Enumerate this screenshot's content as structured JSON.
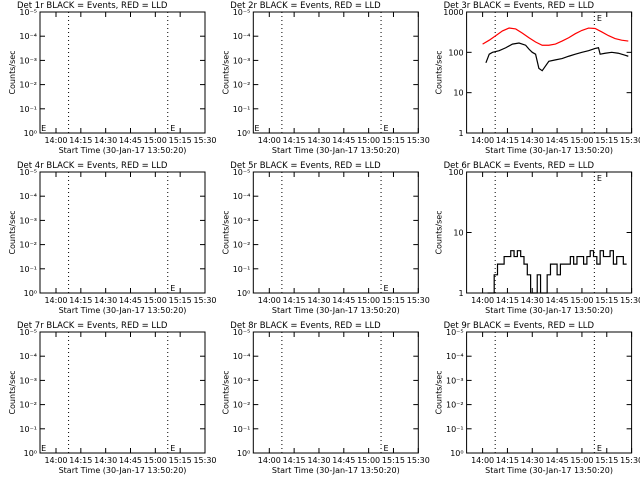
{
  "chart_data": [
    {
      "type": "line",
      "title": "Det 1r BLACK = Events, RED = LLD",
      "xlabel": "Start Time (30-Jan-17 13:50:20)",
      "ylabel": "Counts/sec",
      "log_y": true,
      "xlim": [
        830.333,
        930
      ],
      "xticks": [
        {
          "value": 840,
          "label": "14:00"
        },
        {
          "value": 855,
          "label": "14:15"
        },
        {
          "value": 870,
          "label": "14:30"
        },
        {
          "value": 885,
          "label": "14:45"
        },
        {
          "value": 900,
          "label": "15:00"
        },
        {
          "value": 915,
          "label": "15:15"
        },
        {
          "value": 930,
          "label": "15:30"
        }
      ],
      "ylim": [
        1,
        1e-05
      ],
      "yticks": [
        {
          "value": 1e-05,
          "label": "10⁻⁵"
        },
        {
          "value": 0.0001,
          "label": "10⁻⁴"
        },
        {
          "value": 0.001,
          "label": "10⁻³"
        },
        {
          "value": 0.01,
          "label": "10⁻²"
        },
        {
          "value": 0.1,
          "label": "10⁻¹"
        },
        {
          "value": 1,
          "label": "10⁰"
        }
      ],
      "vlines": [
        847.6,
        907.5
      ],
      "annotations": [
        {
          "text": "E",
          "x": 831,
          "y": 1
        },
        {
          "text": "E",
          "x": 909,
          "y": 1
        }
      ],
      "series": []
    },
    {
      "type": "line",
      "title": "Det 2r BLACK = Events, RED = LLD",
      "xlabel": "Start Time (30-Jan-17 13:50:20)",
      "ylabel": "Counts/sec",
      "log_y": true,
      "xlim": [
        830.333,
        930
      ],
      "xticks": [
        {
          "value": 840,
          "label": "14:00"
        },
        {
          "value": 855,
          "label": "14:15"
        },
        {
          "value": 870,
          "label": "14:30"
        },
        {
          "value": 885,
          "label": "14:45"
        },
        {
          "value": 900,
          "label": "15:00"
        },
        {
          "value": 915,
          "label": "15:15"
        },
        {
          "value": 930,
          "label": "15:30"
        }
      ],
      "ylim": [
        1,
        1e-05
      ],
      "yticks": [
        {
          "value": 1e-05,
          "label": "10⁻⁵"
        },
        {
          "value": 0.0001,
          "label": "10⁻⁴"
        },
        {
          "value": 0.001,
          "label": "10⁻³"
        },
        {
          "value": 0.01,
          "label": "10⁻²"
        },
        {
          "value": 0.1,
          "label": "10⁻¹"
        },
        {
          "value": 1,
          "label": "10⁰"
        }
      ],
      "vlines": [
        847.6,
        907.5
      ],
      "annotations": [
        {
          "text": "E",
          "x": 831,
          "y": 1
        },
        {
          "text": "E",
          "x": 909,
          "y": 1
        }
      ],
      "series": []
    },
    {
      "type": "line",
      "title": "Det 3r BLACK = Events, RED = LLD",
      "xlabel": "Start Time (30-Jan-17 13:50:20)",
      "ylabel": "Counts/sec",
      "log_y": true,
      "xlim": [
        830.333,
        930
      ],
      "xticks": [
        {
          "value": 840,
          "label": "14:00"
        },
        {
          "value": 855,
          "label": "14:15"
        },
        {
          "value": 870,
          "label": "14:30"
        },
        {
          "value": 885,
          "label": "14:45"
        },
        {
          "value": 900,
          "label": "15:00"
        },
        {
          "value": 915,
          "label": "15:15"
        },
        {
          "value": 930,
          "label": "15:30"
        }
      ],
      "ylim": [
        1,
        1000
      ],
      "yticks": [
        1,
        10,
        100,
        1000
      ],
      "vlines": [
        847.6,
        907.5
      ],
      "annotations": [
        {
          "text": "E",
          "x": 909,
          "y": 1000
        }
      ],
      "series": [
        {
          "color": "#ff0000",
          "x": [
            840,
            844,
            848,
            852,
            856,
            860,
            864,
            868,
            872,
            876,
            880,
            884,
            888,
            892,
            896,
            900,
            904,
            908,
            912,
            916,
            920,
            924,
            928
          ],
          "values": [
            160,
            200,
            260,
            340,
            400,
            380,
            300,
            230,
            180,
            150,
            150,
            160,
            190,
            230,
            290,
            350,
            400,
            390,
            320,
            260,
            220,
            200,
            190
          ]
        },
        {
          "color": "#000000",
          "x": [
            842,
            844,
            846,
            850,
            854,
            858,
            862,
            866,
            868,
            870,
            872,
            874,
            876,
            880,
            884,
            888,
            892,
            896,
            900,
            904,
            908,
            910,
            911,
            914,
            918,
            922,
            926,
            928
          ],
          "values": [
            55,
            90,
            100,
            110,
            130,
            160,
            170,
            150,
            120,
            100,
            90,
            40,
            35,
            60,
            65,
            70,
            80,
            90,
            100,
            110,
            125,
            130,
            90,
            95,
            100,
            95,
            85,
            80
          ]
        }
      ]
    },
    {
      "type": "line",
      "title": "Det 4r BLACK = Events, RED = LLD",
      "xlabel": "Start Time (30-Jan-17 13:50:20)",
      "ylabel": "Counts/sec",
      "log_y": true,
      "xlim": [
        830.333,
        930
      ],
      "xticks": [
        {
          "value": 840,
          "label": "14:00"
        },
        {
          "value": 855,
          "label": "14:15"
        },
        {
          "value": 870,
          "label": "14:30"
        },
        {
          "value": 885,
          "label": "14:45"
        },
        {
          "value": 900,
          "label": "15:00"
        },
        {
          "value": 915,
          "label": "15:15"
        },
        {
          "value": 930,
          "label": "15:30"
        }
      ],
      "ylim": [
        1,
        1e-05
      ],
      "yticks": [
        {
          "value": 1e-05,
          "label": "10⁻⁵"
        },
        {
          "value": 0.0001,
          "label": "10⁻⁴"
        },
        {
          "value": 0.001,
          "label": "10⁻³"
        },
        {
          "value": 0.01,
          "label": "10⁻²"
        },
        {
          "value": 0.1,
          "label": "10⁻¹"
        },
        {
          "value": 1,
          "label": "10⁰"
        }
      ],
      "vlines": [
        847.6,
        907.5
      ],
      "annotations": [
        {
          "text": "E",
          "x": 909,
          "y": 1
        }
      ],
      "series": []
    },
    {
      "type": "line",
      "title": "Det 5r BLACK = Events, RED = LLD",
      "xlabel": "Start Time (30-Jan-17 13:50:20)",
      "ylabel": "Counts/sec",
      "log_y": true,
      "xlim": [
        830.333,
        930
      ],
      "xticks": [
        {
          "value": 840,
          "label": "14:00"
        },
        {
          "value": 855,
          "label": "14:15"
        },
        {
          "value": 870,
          "label": "14:30"
        },
        {
          "value": 885,
          "label": "14:45"
        },
        {
          "value": 900,
          "label": "15:00"
        },
        {
          "value": 915,
          "label": "15:15"
        },
        {
          "value": 930,
          "label": "15:30"
        }
      ],
      "ylim": [
        1,
        1e-05
      ],
      "yticks": [
        {
          "value": 1e-05,
          "label": "10⁻⁵"
        },
        {
          "value": 0.0001,
          "label": "10⁻⁴"
        },
        {
          "value": 0.001,
          "label": "10⁻³"
        },
        {
          "value": 0.01,
          "label": "10⁻²"
        },
        {
          "value": 0.1,
          "label": "10⁻¹"
        },
        {
          "value": 1,
          "label": "10⁰"
        }
      ],
      "vlines": [
        847.6,
        907.5
      ],
      "annotations": [
        {
          "text": "E",
          "x": 909,
          "y": 1
        }
      ],
      "series": []
    },
    {
      "type": "line",
      "title": "Det 6r BLACK = Events, RED = LLD",
      "xlabel": "Start Time (30-Jan-17 13:50:20)",
      "ylabel": "Counts/sec",
      "log_y": true,
      "step": true,
      "xlim": [
        830.333,
        930
      ],
      "xticks": [
        {
          "value": 840,
          "label": "14:00"
        },
        {
          "value": 855,
          "label": "14:15"
        },
        {
          "value": 870,
          "label": "14:30"
        },
        {
          "value": 885,
          "label": "14:45"
        },
        {
          "value": 900,
          "label": "15:00"
        },
        {
          "value": 915,
          "label": "15:15"
        },
        {
          "value": 930,
          "label": "15:30"
        }
      ],
      "ylim": [
        1,
        100
      ],
      "yticks": [
        1,
        10,
        100
      ],
      "vlines": [
        847.6,
        907.5
      ],
      "annotations": [
        {
          "text": "E",
          "x": 909,
          "y": 100
        }
      ],
      "series": [
        {
          "color": "#000000",
          "x": [
            843,
            845,
            847,
            849,
            851,
            853,
            855,
            857,
            859,
            861,
            863,
            865,
            867,
            869,
            871,
            873,
            875,
            877,
            879,
            881,
            883,
            885,
            887,
            889,
            891,
            893,
            895,
            897,
            899,
            901,
            903,
            905,
            907,
            909,
            911,
            913,
            915,
            917,
            919,
            921,
            923,
            925,
            927
          ],
          "values": [
            1,
            1,
            2,
            3,
            3,
            4,
            4,
            5,
            4,
            5,
            4,
            3,
            2,
            1,
            1,
            2,
            1,
            1,
            2,
            3,
            3,
            2,
            3,
            3,
            3,
            4,
            3,
            4,
            4,
            3,
            4,
            5,
            4,
            3,
            5,
            4,
            4,
            5,
            3,
            4,
            4,
            3,
            3
          ]
        }
      ]
    },
    {
      "type": "line",
      "title": "Det 7r BLACK = Events, RED = LLD",
      "xlabel": "Start Time (30-Jan-17 13:50:20)",
      "ylabel": "Counts/sec",
      "log_y": true,
      "xlim": [
        830.333,
        930
      ],
      "xticks": [
        {
          "value": 840,
          "label": "14:00"
        },
        {
          "value": 855,
          "label": "14:15"
        },
        {
          "value": 870,
          "label": "14:30"
        },
        {
          "value": 885,
          "label": "14:45"
        },
        {
          "value": 900,
          "label": "15:00"
        },
        {
          "value": 915,
          "label": "15:15"
        },
        {
          "value": 930,
          "label": "15:30"
        }
      ],
      "ylim": [
        1,
        1e-05
      ],
      "yticks": [
        {
          "value": 1e-05,
          "label": "10⁻⁵"
        },
        {
          "value": 0.0001,
          "label": "10⁻⁴"
        },
        {
          "value": 0.001,
          "label": "10⁻³"
        },
        {
          "value": 0.01,
          "label": "10⁻²"
        },
        {
          "value": 0.1,
          "label": "10⁻¹"
        },
        {
          "value": 1,
          "label": "10⁰"
        }
      ],
      "vlines": [
        847.6,
        907.5
      ],
      "annotations": [
        {
          "text": "E",
          "x": 831,
          "y": 1
        },
        {
          "text": "E",
          "x": 909,
          "y": 1
        }
      ],
      "series": []
    },
    {
      "type": "line",
      "title": "Det 8r BLACK = Events, RED = LLD",
      "xlabel": "Start Time (30-Jan-17 13:50:20)",
      "ylabel": "Counts/sec",
      "log_y": true,
      "xlim": [
        830.333,
        930
      ],
      "xticks": [
        {
          "value": 840,
          "label": "14:00"
        },
        {
          "value": 855,
          "label": "14:15"
        },
        {
          "value": 870,
          "label": "14:30"
        },
        {
          "value": 885,
          "label": "14:45"
        },
        {
          "value": 900,
          "label": "15:00"
        },
        {
          "value": 915,
          "label": "15:15"
        },
        {
          "value": 930,
          "label": "15:30"
        }
      ],
      "ylim": [
        1,
        1e-05
      ],
      "yticks": [
        {
          "value": 1e-05,
          "label": "10⁻⁵"
        },
        {
          "value": 0.0001,
          "label": "10⁻⁴"
        },
        {
          "value": 0.001,
          "label": "10⁻³"
        },
        {
          "value": 0.01,
          "label": "10⁻²"
        },
        {
          "value": 0.1,
          "label": "10⁻¹"
        },
        {
          "value": 1,
          "label": "10⁰"
        }
      ],
      "vlines": [
        847.6,
        907.5
      ],
      "annotations": [
        {
          "text": "E",
          "x": 909,
          "y": 1
        }
      ],
      "series": []
    },
    {
      "type": "line",
      "title": "Det 9r BLACK = Events, RED = LLD",
      "xlabel": "Start Time (30-Jan-17 13:50:20)",
      "ylabel": "Counts/sec",
      "log_y": true,
      "xlim": [
        830.333,
        930
      ],
      "xticks": [
        {
          "value": 840,
          "label": "14:00"
        },
        {
          "value": 855,
          "label": "14:15"
        },
        {
          "value": 870,
          "label": "14:30"
        },
        {
          "value": 885,
          "label": "14:45"
        },
        {
          "value": 900,
          "label": "15:00"
        },
        {
          "value": 915,
          "label": "15:15"
        },
        {
          "value": 930,
          "label": "15:30"
        }
      ],
      "ylim": [
        1,
        1e-05
      ],
      "yticks": [
        {
          "value": 1e-05,
          "label": "10⁻⁵"
        },
        {
          "value": 0.0001,
          "label": "10⁻⁴"
        },
        {
          "value": 0.001,
          "label": "10⁻³"
        },
        {
          "value": 0.01,
          "label": "10⁻²"
        },
        {
          "value": 0.1,
          "label": "10⁻¹"
        },
        {
          "value": 1,
          "label": "10⁰"
        }
      ],
      "vlines": [
        847.6,
        907.5
      ],
      "annotations": [
        {
          "text": "E",
          "x": 909,
          "y": 1
        }
      ],
      "series": []
    }
  ]
}
